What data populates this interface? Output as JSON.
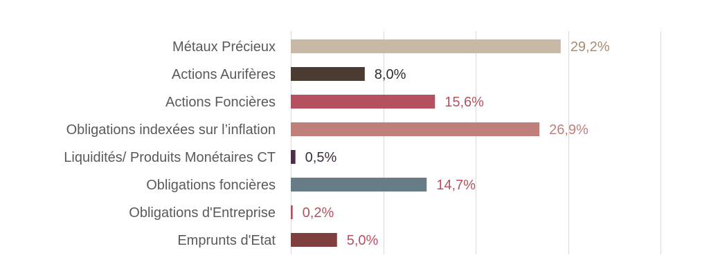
{
  "chart_data": {
    "type": "bar",
    "orientation": "horizontal",
    "categories": [
      "Métaux Précieux",
      "Actions Aurifères",
      "Actions Foncières",
      "Obligations indexées sur l’inflation",
      "Liquidités/ Produits Monétaires CT",
      "Obligations foncières",
      "Obligations d'Entreprise",
      "Emprunts d'Etat"
    ],
    "values": [
      29.2,
      8.0,
      15.6,
      26.9,
      0.5,
      14.7,
      0.2,
      5.0
    ],
    "value_labels": [
      "29,2%",
      "8,0%",
      "15,6%",
      "26,9%",
      "0,5%",
      "14,7%",
      "0,2%",
      "5,0%"
    ],
    "bar_colors": [
      "#c8b9a6",
      "#4a3c33",
      "#b5505e",
      "#bf7f7b",
      "#4a2e4b",
      "#667d88",
      "#b5505e",
      "#7f3f3f"
    ],
    "label_colors": [
      "#a68d72",
      "#2d2d2d",
      "#b5505e",
      "#bf7f7b",
      "#3a2b40",
      "#b5505e",
      "#b5505e",
      "#b5505e"
    ],
    "xlim": [
      0,
      40
    ],
    "grid": true,
    "gridline_values": [
      0,
      10,
      20,
      30,
      40
    ],
    "title": "",
    "xlabel": "",
    "ylabel": ""
  }
}
